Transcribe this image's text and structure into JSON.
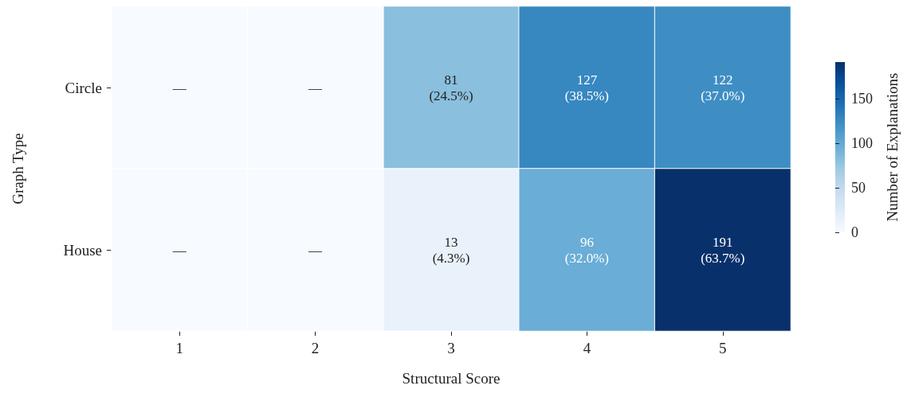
{
  "chart_data": {
    "type": "heatmap",
    "xlabel": "Structural Score",
    "ylabel": "Graph Type",
    "clabel": "Number of Explanations",
    "categories": [
      "1",
      "2",
      "3",
      "4",
      "5"
    ],
    "y_categories": [
      "Circle",
      "House"
    ],
    "cells": [
      [
        null,
        null,
        81,
        127,
        122
      ],
      [
        null,
        null,
        13,
        96,
        191
      ]
    ],
    "cell_labels": [
      [
        "—",
        "—",
        "81\n(24.5%)",
        "127\n(38.5%)",
        "122\n(37.0%)"
      ],
      [
        "—",
        "—",
        "13\n(4.3%)",
        "96\n(32.0%)",
        "191\n(63.7%)"
      ]
    ],
    "clim": [
      0,
      191
    ],
    "cticks": [
      0,
      50,
      100,
      150
    ]
  }
}
